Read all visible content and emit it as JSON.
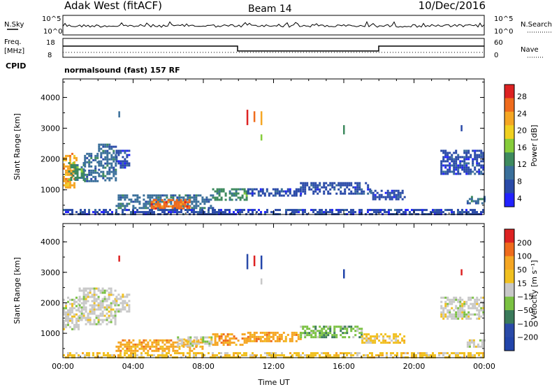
{
  "header": {
    "station": "Adak West (fitACF)",
    "beam": "Beam 14",
    "date": "10/Dec/2016"
  },
  "top_panels": {
    "nsky_label": "N.Sky",
    "nsky_ticks": [
      "10^5",
      "10^0"
    ],
    "nsearch_label": "N.Search",
    "nsearch_ticks": [
      "10^5",
      "10^0"
    ],
    "freq_label_1": "Freq.",
    "freq_label_2": "[MHz]",
    "freq_ticks": [
      "18",
      "8"
    ],
    "nave_label": "Nave",
    "nave_ticks": [
      "60",
      "0"
    ],
    "cpid_label": "CPID",
    "cpid_text": "normalsound (fast) 157 RF"
  },
  "colors": {
    "power_scale": [
      "#2222ff",
      "#2a4aa8",
      "#3a6f9a",
      "#3e8a5e",
      "#86cc3a",
      "#f0d020",
      "#f5a623",
      "#ef6b1c",
      "#dd2222"
    ],
    "velocity_scale": [
      "#2244aa",
      "#2a4aa8",
      "#3a7a5a",
      "#7ac142",
      "#c8c8c8",
      "#f0c020",
      "#f5a623",
      "#ef6b1c",
      "#dd2222"
    ]
  },
  "chart_data": [
    {
      "type": "heatmap",
      "name": "power",
      "ylabel": "Slant Range [km]",
      "xlabel": "",
      "yticks": [
        "1000",
        "2000",
        "3000",
        "4000"
      ],
      "xticks": [
        "00:00",
        "04:00",
        "08:00",
        "12:00",
        "16:00",
        "20:00",
        "00:00"
      ],
      "colorbar_label": "Power [dB]",
      "colorbar_ticks": [
        "28",
        "24",
        "20",
        "16",
        "12",
        "8",
        "4"
      ],
      "ylim": [
        200,
        4600
      ],
      "xlim": [
        0,
        24
      ],
      "patches": [
        {
          "t0": 0.0,
          "t1": 0.8,
          "r0": 1050,
          "r1": 2200,
          "level": 6
        },
        {
          "t0": 0.3,
          "t1": 1.2,
          "r0": 1300,
          "r1": 1900,
          "level": 3
        },
        {
          "t0": 1.2,
          "t1": 2.0,
          "r0": 1300,
          "r1": 2200,
          "level": 2
        },
        {
          "t0": 2.0,
          "t1": 3.0,
          "r0": 1300,
          "r1": 2500,
          "level": 2
        },
        {
          "t0": 3.0,
          "t1": 3.8,
          "r0": 1700,
          "r1": 2300,
          "level": 1
        },
        {
          "t0": 3.0,
          "t1": 8.5,
          "r0": 400,
          "r1": 850,
          "level": 2
        },
        {
          "t0": 5.0,
          "t1": 7.2,
          "r0": 420,
          "r1": 700,
          "level": 7
        },
        {
          "t0": 8.5,
          "t1": 10.5,
          "r0": 700,
          "r1": 1050,
          "level": 3
        },
        {
          "t0": 10.5,
          "t1": 13.5,
          "r0": 800,
          "r1": 1050,
          "level": 1
        },
        {
          "t0": 13.5,
          "t1": 17.5,
          "r0": 850,
          "r1": 1250,
          "level": 1
        },
        {
          "t0": 17.5,
          "t1": 19.5,
          "r0": 700,
          "r1": 1000,
          "level": 1
        },
        {
          "t0": 21.5,
          "t1": 24.0,
          "r0": 1500,
          "r1": 2300,
          "level": 1
        },
        {
          "t0": 23.0,
          "t1": 24.0,
          "r0": 550,
          "r1": 800,
          "level": 2
        },
        {
          "t0": 0.0,
          "t1": 24.0,
          "r0": 220,
          "r1": 380,
          "level": 1
        }
      ],
      "streaks": [
        {
          "t": 10.5,
          "r0": 3100,
          "r1": 3600,
          "level": 8
        },
        {
          "t": 10.9,
          "r0": 3200,
          "r1": 3550,
          "level": 7
        },
        {
          "t": 11.3,
          "r0": 3100,
          "r1": 3550,
          "level": 6
        },
        {
          "t": 3.2,
          "r0": 3350,
          "r1": 3550,
          "level": 2
        },
        {
          "t": 16.0,
          "r0": 2800,
          "r1": 3100,
          "level": 3
        },
        {
          "t": 11.3,
          "r0": 2600,
          "r1": 2800,
          "level": 4
        },
        {
          "t": 22.7,
          "r0": 2900,
          "r1": 3100,
          "level": 1
        }
      ]
    },
    {
      "type": "heatmap",
      "name": "velocity",
      "ylabel": "Slant Range [km]",
      "xlabel": "Time UT",
      "yticks": [
        "1000",
        "2000",
        "3000",
        "4000"
      ],
      "xticks": [
        "00:00",
        "04:00",
        "08:00",
        "12:00",
        "16:00",
        "20:00",
        "00:00"
      ],
      "colorbar_label": "Velocity [m s⁻¹]",
      "colorbar_ticks": [
        "200",
        "100",
        "50",
        "15",
        "−15",
        "−50",
        "−100",
        "−200"
      ],
      "ylim": [
        200,
        4600
      ],
      "xlim": [
        0,
        24
      ],
      "patches": [
        {
          "t0": 0.0,
          "t1": 0.9,
          "r0": 1100,
          "r1": 2200,
          "level": 4
        },
        {
          "t0": 0.9,
          "t1": 3.0,
          "r0": 1300,
          "r1": 2500,
          "level": 4
        },
        {
          "t0": 3.0,
          "t1": 3.8,
          "r0": 1700,
          "r1": 2300,
          "level": 4
        },
        {
          "t0": 3.0,
          "t1": 8.0,
          "r0": 400,
          "r1": 800,
          "level": 6
        },
        {
          "t0": 6.5,
          "t1": 8.5,
          "r0": 600,
          "r1": 900,
          "level": 4
        },
        {
          "t0": 8.5,
          "t1": 10.5,
          "r0": 650,
          "r1": 1000,
          "level": 6
        },
        {
          "t0": 10.5,
          "t1": 13.5,
          "r0": 750,
          "r1": 1050,
          "level": 6
        },
        {
          "t0": 13.5,
          "t1": 17.0,
          "r0": 850,
          "r1": 1250,
          "level": 3
        },
        {
          "t0": 17.0,
          "t1": 19.5,
          "r0": 700,
          "r1": 1000,
          "level": 5
        },
        {
          "t0": 21.5,
          "t1": 24.0,
          "r0": 1500,
          "r1": 2200,
          "level": 4
        },
        {
          "t0": 23.0,
          "t1": 24.0,
          "r0": 550,
          "r1": 800,
          "level": 4
        },
        {
          "t0": 0.0,
          "t1": 24.0,
          "r0": 220,
          "r1": 380,
          "level": 5
        }
      ],
      "streaks": [
        {
          "t": 10.5,
          "r0": 3100,
          "r1": 3600,
          "level": 1
        },
        {
          "t": 10.9,
          "r0": 3200,
          "r1": 3550,
          "level": 8
        },
        {
          "t": 11.3,
          "r0": 3100,
          "r1": 3550,
          "level": 0
        },
        {
          "t": 3.2,
          "r0": 3350,
          "r1": 3550,
          "level": 8
        },
        {
          "t": 16.0,
          "r0": 2800,
          "r1": 3100,
          "level": 0
        },
        {
          "t": 11.3,
          "r0": 2600,
          "r1": 2800,
          "level": 4
        },
        {
          "t": 22.7,
          "r0": 2900,
          "r1": 3100,
          "level": 8
        }
      ]
    }
  ]
}
